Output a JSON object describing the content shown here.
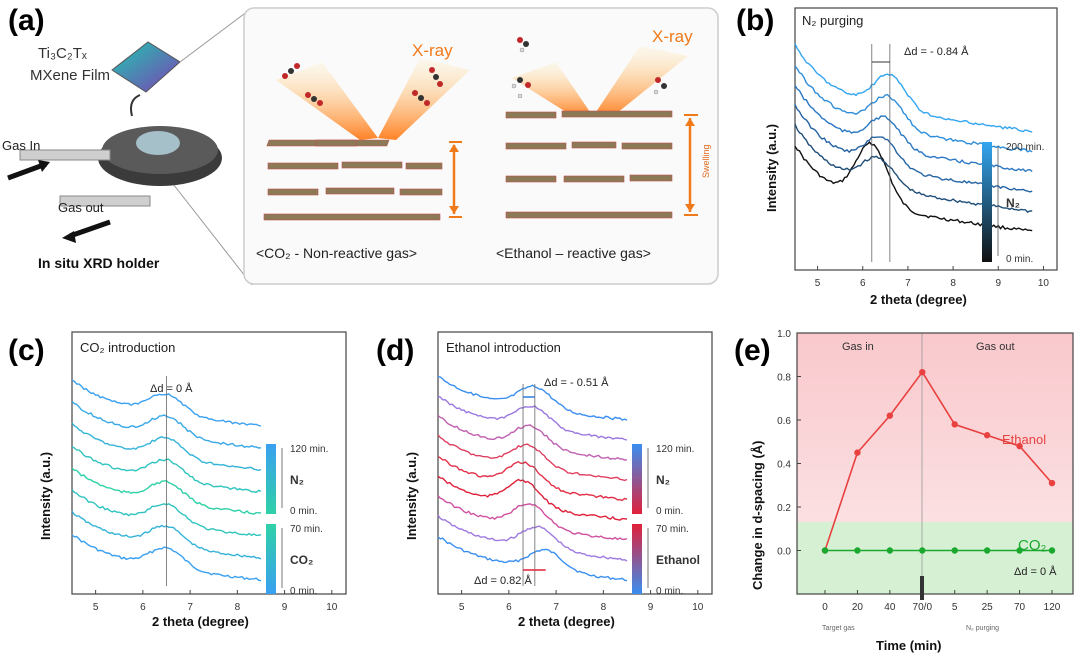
{
  "panel_a": {
    "label": "(a)",
    "film_label_line1": "Ti₃C₂Tₓ",
    "film_label_line2": "MXene Film",
    "gas_in": "Gas In",
    "gas_out": "Gas out",
    "holder": "In situ XRD holder",
    "xray": "X-ray",
    "co2_caption": "<CO₂ - Non-reactive gas>",
    "ethanol_caption": "<Ethanol – reactive gas>",
    "swelling": "Swelling"
  },
  "chart_data": [
    {
      "id": "b",
      "label": "(b)",
      "type": "line",
      "title": "N₂ purging",
      "xlabel": "2 theta (degree)",
      "ylabel": "Intensity (a.u.)",
      "xlim": [
        4.5,
        10.3
      ],
      "xticks": [
        5,
        6,
        7,
        8,
        9,
        10
      ],
      "annotation": "Δd = - 0.84 Å",
      "colorbar": {
        "top": "200 min.",
        "bottom": "0 min.",
        "name": "N₂",
        "colors": [
          "#34a6f0",
          "#111111"
        ]
      },
      "series_colors": [
        "#111111",
        "#1f4e78",
        "#2563a3",
        "#2b78c3",
        "#2f8ed9",
        "#34a6f0"
      ],
      "curve_peaks": [
        6.2,
        6.34,
        6.41,
        6.48,
        6.55,
        6.6
      ]
    },
    {
      "id": "c",
      "label": "(c)",
      "type": "line",
      "title": "CO₂ introduction",
      "xlabel": "2 theta (degree)",
      "ylabel": "Intensity (a.u.)",
      "xlim": [
        4.5,
        10.3
      ],
      "xticks": [
        5,
        6,
        7,
        8,
        9,
        10
      ],
      "annotation": "Δd = 0 Å",
      "colorbar_top": {
        "top": "120 min.",
        "bottom": "0 min.",
        "name": "N₂",
        "colors": [
          "#3aa0f0",
          "#2fd1a8"
        ]
      },
      "colorbar_bottom": {
        "top": "70 min.",
        "bottom": "0 min.",
        "name": "CO₂",
        "colors": [
          "#2fd1a8",
          "#3aa0f0"
        ]
      },
      "series_colors": [
        "#3aa0f0",
        "#35b3d8",
        "#30c4bf",
        "#2fd1a8",
        "#30c4bf",
        "#35b3d8",
        "#38a8e6",
        "#3aa0f0"
      ],
      "curve_peaks": [
        6.5,
        6.5,
        6.5,
        6.5,
        6.5,
        6.5,
        6.5,
        6.5
      ]
    },
    {
      "id": "d",
      "label": "(d)",
      "type": "line",
      "title": "Ethanol introduction",
      "xlabel": "2 theta (degree)",
      "ylabel": "Intensity (a.u.)",
      "xlim": [
        4.5,
        10.3
      ],
      "xticks": [
        5,
        6,
        7,
        8,
        9,
        10
      ],
      "annotation_top": "Δd = - 0.51 Å",
      "annotation_bottom": "Δd = 0.82 Å",
      "colorbar_top": {
        "top": "120 min.",
        "bottom": "0 min.",
        "name": "N₂",
        "colors": [
          "#3a8ff0",
          "#e0203a"
        ]
      },
      "colorbar_bottom": {
        "top": "70 min.",
        "bottom": "0 min.",
        "name": "Ethanol",
        "colors": [
          "#e0203a",
          "#3a8ff0"
        ]
      },
      "series_colors": [
        "#3a8ff0",
        "#a07ae0",
        "#d050a0",
        "#e0203a",
        "#e23048",
        "#e04060",
        "#c060b0",
        "#9a78e0",
        "#3a8ff0"
      ],
      "curve_peaks": [
        6.78,
        6.62,
        6.45,
        6.3,
        6.32,
        6.4,
        6.45,
        6.5,
        6.55
      ]
    },
    {
      "id": "e",
      "label": "(e)",
      "type": "line",
      "xlabel": "Time (min)",
      "ylabel": "Change in d-spacing (Å)",
      "ylim": [
        -0.2,
        1.0
      ],
      "yticks": [
        "0.0",
        "0.2",
        "0.4",
        "0.6",
        "0.8",
        "1.0"
      ],
      "categories": [
        "0",
        "20",
        "40",
        "70/0",
        "5",
        "25",
        "70",
        "120"
      ],
      "region_labels": [
        "Gas in",
        "Gas out"
      ],
      "sublabels": [
        "Target gas",
        "N₂ purging"
      ],
      "series": [
        {
          "name": "Ethanol",
          "color": "#e8413f",
          "values": [
            0.0,
            0.45,
            0.62,
            0.82,
            0.58,
            0.53,
            0.48,
            0.31
          ]
        },
        {
          "name": "CO₂",
          "color": "#1aa82e",
          "values": [
            0,
            0,
            0,
            0,
            0,
            0,
            0,
            0
          ]
        }
      ],
      "annotation": "Δd = 0 Å"
    }
  ]
}
